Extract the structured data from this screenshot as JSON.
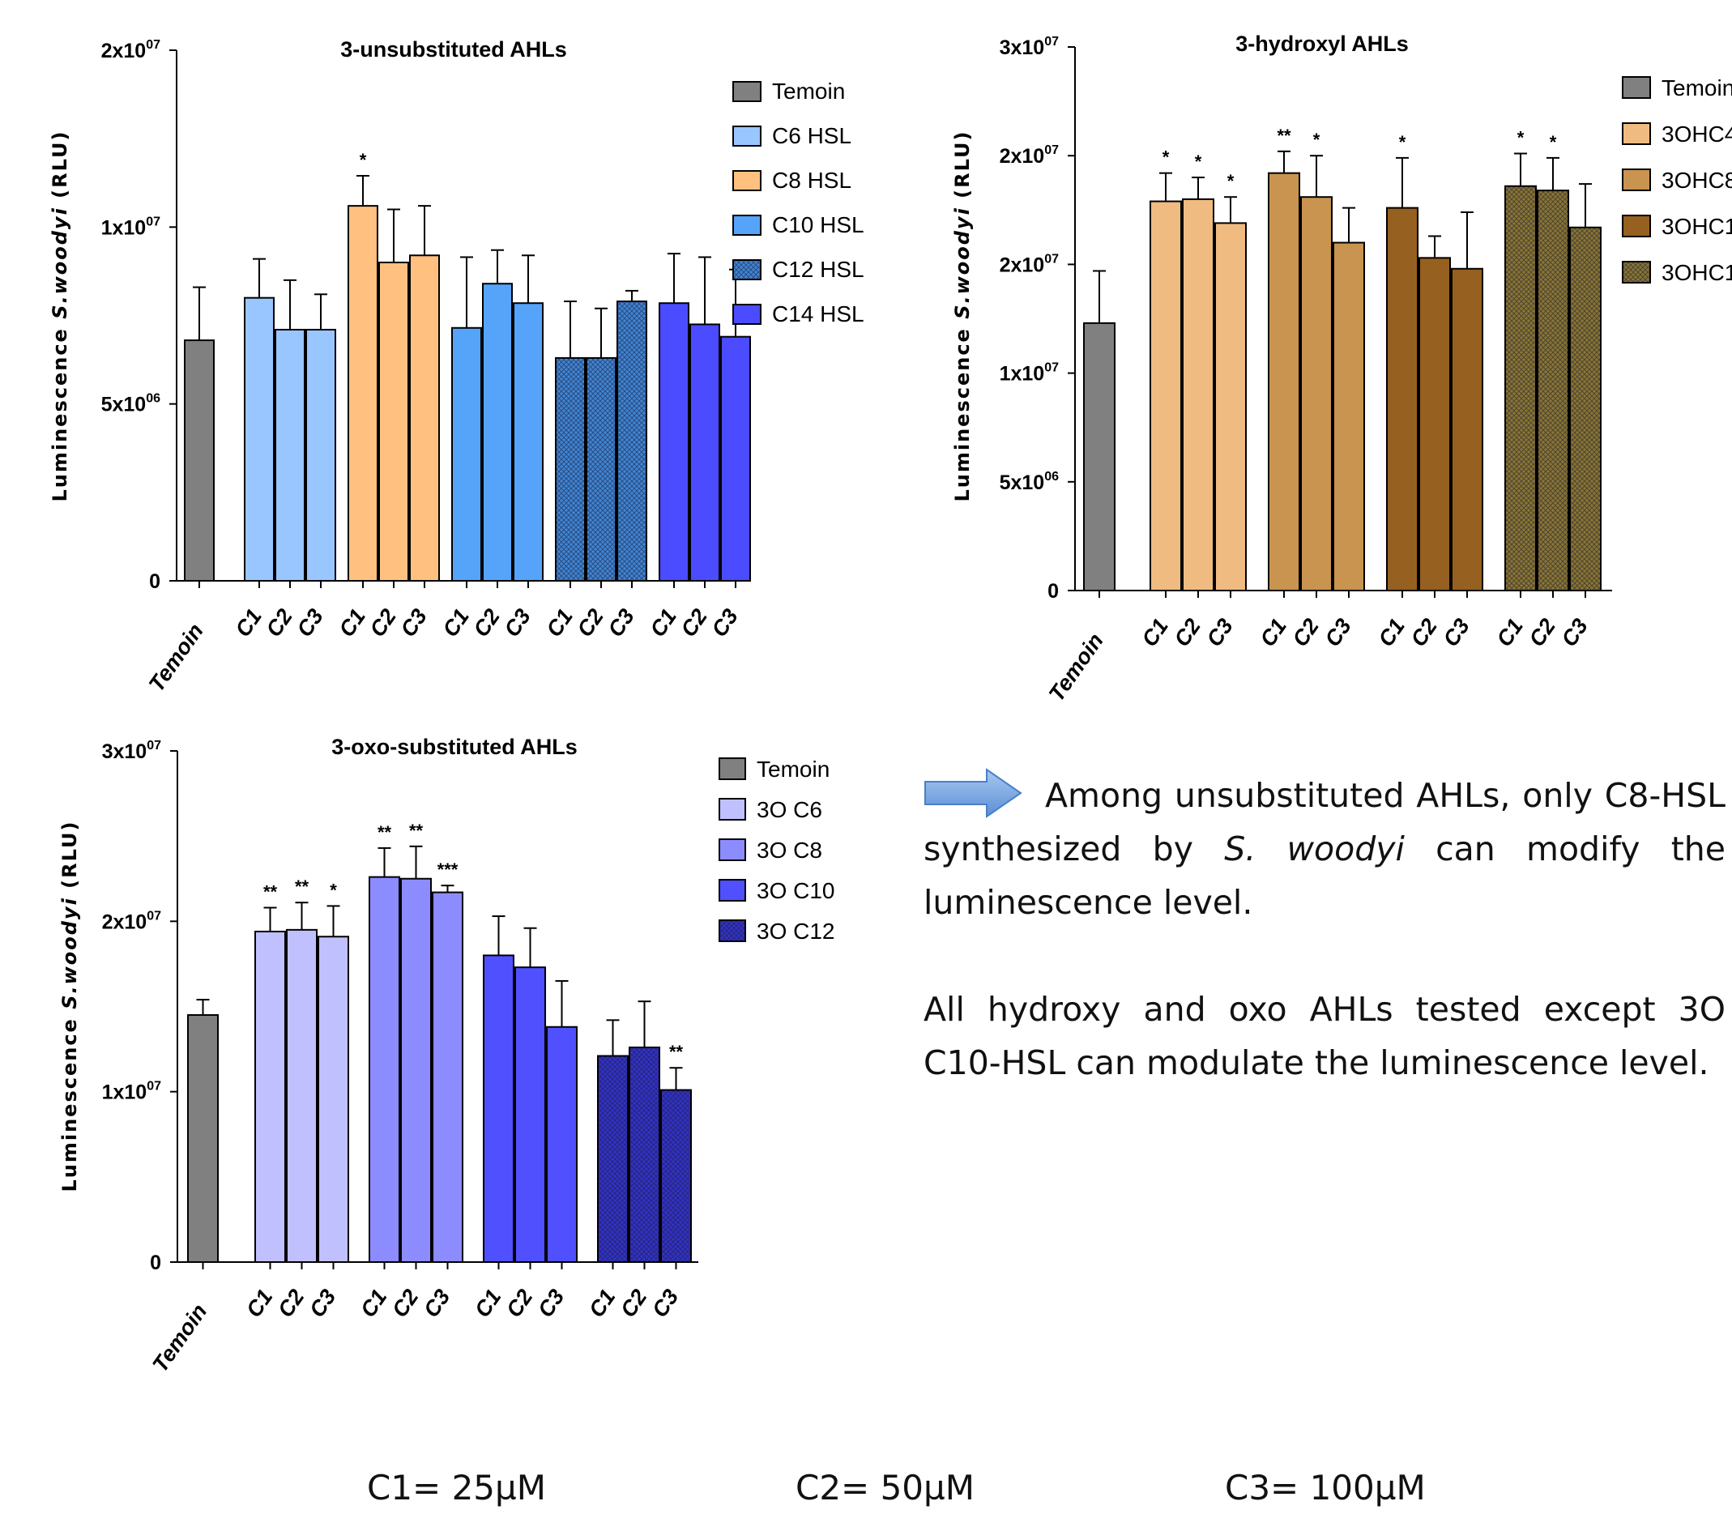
{
  "chart_data": [
    {
      "type": "bar",
      "title": "3-unsubstituted AHLs",
      "ylabel_prefix": "Luminescence ",
      "ylabel_species": "S.woodyi",
      "ylabel_suffix": " (RLU)",
      "ylim": [
        0,
        15000000
      ],
      "yticks": [
        {
          "value": 0,
          "mant": "0",
          "exp": ""
        },
        {
          "value": 5000000,
          "mant": "5x10",
          "exp": "06"
        },
        {
          "value": 10000000,
          "mant": "1x10",
          "exp": "07"
        },
        {
          "value": 15000000,
          "mant": "2x10",
          "exp": "07"
        }
      ],
      "legend": [
        "Temoin",
        "C6 HSL",
        "C8 HSL",
        "C10 HSL",
        "C12 HSL",
        "C14 HSL"
      ],
      "groups": [
        {
          "name": "Temoin",
          "color": "#808080",
          "pattern": false,
          "bars": [
            {
              "label": "Temoin",
              "value": 6800000,
              "error": 1500000,
              "sig": ""
            }
          ]
        },
        {
          "name": "C6 HSL",
          "color": "#99c6ff",
          "pattern": false,
          "bars": [
            {
              "label": "C1",
              "value": 8000000,
              "error": 1100000,
              "sig": ""
            },
            {
              "label": "C2",
              "value": 7100000,
              "error": 1400000,
              "sig": ""
            },
            {
              "label": "C3",
              "value": 7100000,
              "error": 1000000,
              "sig": ""
            }
          ]
        },
        {
          "name": "C8 HSL",
          "color": "#ffc080",
          "pattern": false,
          "bars": [
            {
              "label": "C1",
              "value": 10600000,
              "error": 850000,
              "sig": "*"
            },
            {
              "label": "C2",
              "value": 9000000,
              "error": 1500000,
              "sig": ""
            },
            {
              "label": "C3",
              "value": 9200000,
              "error": 1400000,
              "sig": ""
            }
          ]
        },
        {
          "name": "C10 HSL",
          "color": "#55a4fa",
          "pattern": false,
          "bars": [
            {
              "label": "C1",
              "value": 7150000,
              "error": 2000000,
              "sig": ""
            },
            {
              "label": "C2",
              "value": 8400000,
              "error": 950000,
              "sig": ""
            },
            {
              "label": "C3",
              "value": 7850000,
              "error": 1350000,
              "sig": ""
            }
          ]
        },
        {
          "name": "C12 HSL",
          "color": "#3f86d4",
          "pattern": true,
          "bars": [
            {
              "label": "C1",
              "value": 6300000,
              "error": 1600000,
              "sig": ""
            },
            {
              "label": "C2",
              "value": 6300000,
              "error": 1400000,
              "sig": ""
            },
            {
              "label": "C3",
              "value": 7900000,
              "error": 300000,
              "sig": ""
            }
          ]
        },
        {
          "name": "C14 HSL",
          "color": "#4b4bff",
          "pattern": false,
          "bars": [
            {
              "label": "C1",
              "value": 7850000,
              "error": 1400000,
              "sig": ""
            },
            {
              "label": "C2",
              "value": 7250000,
              "error": 1900000,
              "sig": ""
            },
            {
              "label": "C3",
              "value": 6900000,
              "error": 1900000,
              "sig": ""
            }
          ]
        }
      ]
    },
    {
      "type": "bar",
      "title": "3-hydroxyl AHLs",
      "ylabel_prefix": "Luminescence ",
      "ylabel_species": "S.woodyi",
      "ylabel_suffix": " (RLU)",
      "ylim": [
        0,
        25000000
      ],
      "yticks": [
        {
          "value": 0,
          "mant": "0",
          "exp": ""
        },
        {
          "value": 5000000,
          "mant": "5x10",
          "exp": "06"
        },
        {
          "value": 10000000,
          "mant": "1x10",
          "exp": "07"
        },
        {
          "value": 15000000,
          "mant": "2x10",
          "exp": "07"
        },
        {
          "value": 20000000,
          "mant": "2x10",
          "exp": "07"
        },
        {
          "value": 25000000,
          "mant": "3x10",
          "exp": "07"
        }
      ],
      "legend": [
        "Temoin",
        "3OHC4",
        "3OHC8",
        "3OHC1",
        "3OHC1"
      ],
      "groups": [
        {
          "name": "Temoin",
          "color": "#808080",
          "pattern": false,
          "bars": [
            {
              "label": "Temoin",
              "value": 12300000,
              "error": 2400000,
              "sig": ""
            }
          ]
        },
        {
          "name": "3OHC4",
          "color": "#f0bb80",
          "pattern": false,
          "bars": [
            {
              "label": "C1",
              "value": 17900000,
              "error": 1300000,
              "sig": "*"
            },
            {
              "label": "C2",
              "value": 18000000,
              "error": 1000000,
              "sig": "*"
            },
            {
              "label": "C3",
              "value": 16900000,
              "error": 1200000,
              "sig": "*"
            }
          ]
        },
        {
          "name": "3OHC8",
          "color": "#c89450",
          "pattern": false,
          "bars": [
            {
              "label": "C1",
              "value": 19200000,
              "error": 1000000,
              "sig": "**"
            },
            {
              "label": "C2",
              "value": 18100000,
              "error": 1900000,
              "sig": "*"
            },
            {
              "label": "C3",
              "value": 16000000,
              "error": 1600000,
              "sig": ""
            }
          ]
        },
        {
          "name": "3OHC1",
          "color": "#966020",
          "pattern": false,
          "bars": [
            {
              "label": "C1",
              "value": 17600000,
              "error": 2300000,
              "sig": "*"
            },
            {
              "label": "C2",
              "value": 15300000,
              "error": 1000000,
              "sig": ""
            },
            {
              "label": "C3",
              "value": 14800000,
              "error": 2600000,
              "sig": ""
            }
          ]
        },
        {
          "name": "3OHC1",
          "color": "#8a7630",
          "pattern": true,
          "bars": [
            {
              "label": "C1",
              "value": 18600000,
              "error": 1500000,
              "sig": "*"
            },
            {
              "label": "C2",
              "value": 18400000,
              "error": 1500000,
              "sig": "*"
            },
            {
              "label": "C3",
              "value": 16700000,
              "error": 2000000,
              "sig": ""
            }
          ]
        }
      ]
    },
    {
      "type": "bar",
      "title": "3-oxo-substituted  AHLs",
      "ylabel_prefix": "Luminescence ",
      "ylabel_species": "S.woodyi",
      "ylabel_suffix": " (RLU)",
      "ylim": [
        0,
        30000000
      ],
      "yticks": [
        {
          "value": 0,
          "mant": "0",
          "exp": ""
        },
        {
          "value": 10000000,
          "mant": "1x10",
          "exp": "07"
        },
        {
          "value": 20000000,
          "mant": "2x10",
          "exp": "07"
        },
        {
          "value": 30000000,
          "mant": "3x10",
          "exp": "07"
        }
      ],
      "legend": [
        "Temoin",
        "3O C6",
        "3O C8",
        "3O C10",
        "3O C12"
      ],
      "groups": [
        {
          "name": "Temoin",
          "color": "#808080",
          "pattern": false,
          "bars": [
            {
              "label": "Temoin",
              "value": 14500000,
              "error": 900000,
              "sig": ""
            }
          ]
        },
        {
          "name": "3O C6",
          "color": "#c0c0ff",
          "pattern": false,
          "bars": [
            {
              "label": "C1",
              "value": 19400000,
              "error": 1400000,
              "sig": "**"
            },
            {
              "label": "C2",
              "value": 19500000,
              "error": 1600000,
              "sig": "**"
            },
            {
              "label": "C3",
              "value": 19100000,
              "error": 1800000,
              "sig": "*"
            }
          ]
        },
        {
          "name": "3O C8",
          "color": "#8c8cff",
          "pattern": false,
          "bars": [
            {
              "label": "C1",
              "value": 22600000,
              "error": 1700000,
              "sig": "**"
            },
            {
              "label": "C2",
              "value": 22500000,
              "error": 1900000,
              "sig": "**"
            },
            {
              "label": "C3",
              "value": 21700000,
              "error": 400000,
              "sig": "***"
            }
          ]
        },
        {
          "name": "3O C10",
          "color": "#5050ff",
          "pattern": false,
          "bars": [
            {
              "label": "C1",
              "value": 18000000,
              "error": 2300000,
              "sig": ""
            },
            {
              "label": "C2",
              "value": 17300000,
              "error": 2300000,
              "sig": ""
            },
            {
              "label": "C3",
              "value": 13800000,
              "error": 2700000,
              "sig": ""
            }
          ]
        },
        {
          "name": "3O C12",
          "color": "#3232c8",
          "pattern": true,
          "bars": [
            {
              "label": "C1",
              "value": 12100000,
              "error": 2100000,
              "sig": ""
            },
            {
              "label": "C2",
              "value": 12600000,
              "error": 2700000,
              "sig": ""
            },
            {
              "label": "C3",
              "value": 10100000,
              "error": 1300000,
              "sig": "**"
            }
          ]
        }
      ]
    }
  ],
  "note": {
    "p1_text_1": "Among unsubstituted AHLs, only C8-HSL synthesized by ",
    "p1_species": "S. woodyi",
    "p1_text_2": " can modify the luminescence level.",
    "p2": "All hydroxy and oxo AHLs tested except 3O C10-HSL can modulate the luminescence level."
  },
  "concentrations": {
    "c1": "C1= 25µM",
    "c2": "C2= 50µM",
    "c3": "C3= 100µM"
  },
  "colors": {
    "arrow_fill": "#5b8fd6",
    "arrow_light": "#a8c8f0"
  },
  "icons": {
    "arrow": "right-arrow-icon"
  }
}
